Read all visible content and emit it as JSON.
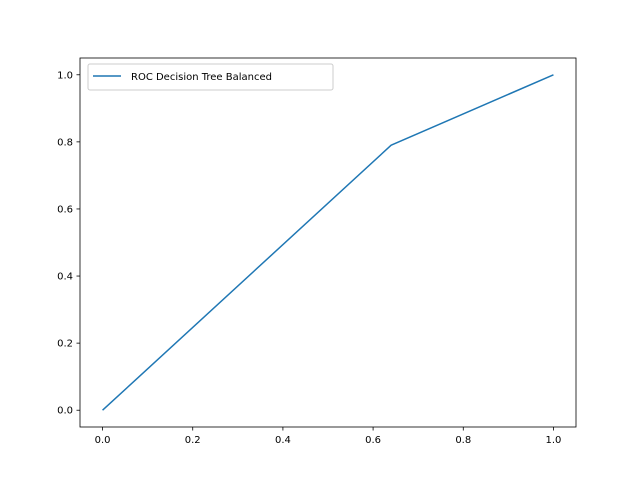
{
  "chart_data": {
    "type": "line",
    "title": "",
    "xlabel": "",
    "ylabel": "",
    "xlim": [
      -0.05,
      1.05
    ],
    "ylim": [
      -0.05,
      1.05
    ],
    "xticks": [
      0.0,
      0.2,
      0.4,
      0.6,
      0.8,
      1.0
    ],
    "yticks": [
      0.0,
      0.2,
      0.4,
      0.6,
      0.8,
      1.0
    ],
    "xtick_labels": [
      "0.0",
      "0.2",
      "0.4",
      "0.6",
      "0.8",
      "1.0"
    ],
    "ytick_labels": [
      "0.0",
      "0.2",
      "0.4",
      "0.6",
      "0.8",
      "1.0"
    ],
    "grid": false,
    "legend_position": "top-left",
    "series": [
      {
        "name": "ROC Decision Tree Balanced",
        "color": "#1f77b4",
        "x": [
          0.0,
          0.64,
          1.0
        ],
        "y": [
          0.0,
          0.79,
          1.0
        ]
      }
    ]
  }
}
